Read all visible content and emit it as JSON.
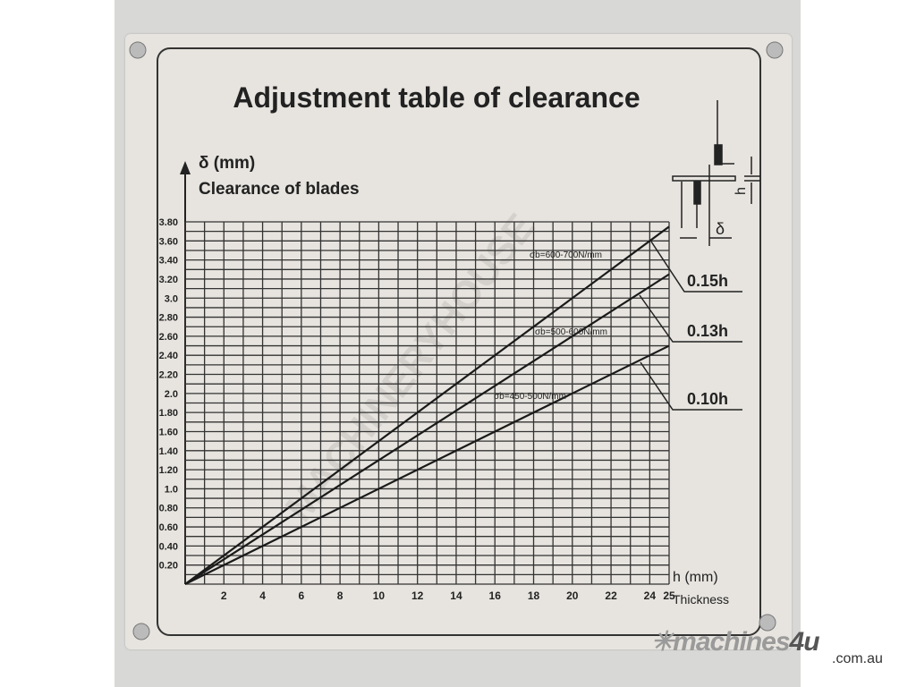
{
  "chart_data": {
    "type": "line",
    "title": "Adjustment table of clearance",
    "ylabel": "δ (mm)",
    "ylabel_sub": "Clearance of blades",
    "xlabel": "h (mm)",
    "xlabel_sub": "Thickness",
    "xlim": [
      0,
      25
    ],
    "ylim": [
      0,
      3.8
    ],
    "grid": true,
    "x_ticks": [
      "2",
      "4",
      "6",
      "8",
      "10",
      "12",
      "14",
      "16",
      "18",
      "20",
      "22",
      "24",
      "25"
    ],
    "y_ticks": [
      "0.20",
      "0.40",
      "0.60",
      "0.80",
      "1.0",
      "1.20",
      "1.40",
      "1.60",
      "1.80",
      "2.0",
      "2.20",
      "2.40",
      "2.60",
      "2.80",
      "3.0",
      "3.20",
      "3.40",
      "3.60",
      "3.80"
    ],
    "series": [
      {
        "name": "0.15h",
        "annotation": "σb=600-700N/mm",
        "x": [
          0,
          25
        ],
        "y": [
          0,
          3.75
        ]
      },
      {
        "name": "0.13h",
        "annotation": "σb=500-600N/mm",
        "x": [
          0,
          25
        ],
        "y": [
          0,
          3.25
        ]
      },
      {
        "name": "0.10h",
        "annotation": "σb=450-500N/mm",
        "x": [
          0,
          25
        ],
        "y": [
          0,
          2.5
        ]
      }
    ],
    "diagram_labels": {
      "h": "h",
      "delta": "δ"
    }
  },
  "watermark": "MACHINERYHOUSE",
  "brand": {
    "name_a": "machines",
    "name_b": "4u",
    "domain": ".com.au"
  },
  "colors": {
    "plate": "#e7e4df",
    "ink": "#222222"
  }
}
